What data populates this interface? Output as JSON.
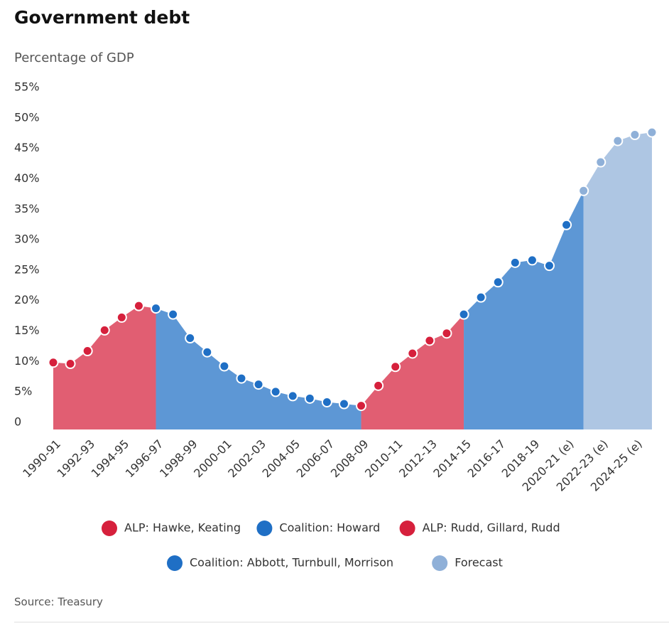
{
  "chart_data": {
    "type": "area",
    "title": "Government debt",
    "subtitle": "Percentage of GDP",
    "source": "Source: Treasury",
    "categories": [
      "1990-91",
      null,
      "1992-93",
      null,
      "1994-95",
      null,
      "1996-97",
      null,
      "1998-99",
      null,
      "2000-01",
      null,
      "2002-03",
      null,
      "2004-05",
      null,
      "2006-07",
      null,
      "2008-09",
      null,
      "2010-11",
      null,
      "2012-13",
      null,
      "2014-15",
      null,
      "2016-17",
      null,
      "2018-19",
      null,
      "2020-21 (e)",
      null,
      "2022-23 (e)",
      null,
      "2024-25 (e)",
      null
    ],
    "series": [
      {
        "name": "ALP: Hawke, Keating",
        "color": "#d6203c",
        "values": [
          11.0,
          10.8,
          12.9,
          16.3,
          18.4,
          20.3,
          null,
          null,
          null,
          null,
          null,
          null,
          null,
          null,
          null,
          null,
          null,
          null,
          null,
          null,
          null,
          null,
          null,
          null,
          null,
          null,
          null,
          null,
          null,
          null,
          null,
          null,
          null,
          null,
          null,
          null
        ]
      },
      {
        "name": "Coalition: Howard",
        "color": "#1f6fc5",
        "values": [
          null,
          null,
          null,
          null,
          null,
          null,
          19.9,
          18.9,
          15.0,
          12.7,
          10.4,
          8.4,
          7.4,
          6.2,
          5.5,
          5.1,
          4.5,
          4.2,
          null,
          null,
          null,
          null,
          null,
          null,
          null,
          null,
          null,
          null,
          null,
          null,
          null,
          null,
          null,
          null,
          null,
          null
        ]
      },
      {
        "name": "ALP: Rudd, Gillard, Rudd",
        "color": "#d6203c",
        "values": [
          null,
          null,
          null,
          null,
          null,
          null,
          null,
          null,
          null,
          null,
          null,
          null,
          null,
          null,
          null,
          null,
          null,
          null,
          3.9,
          7.2,
          10.3,
          12.5,
          14.6,
          15.8,
          null,
          null,
          null,
          null,
          null,
          null,
          null,
          null,
          null,
          null,
          null,
          null
        ]
      },
      {
        "name": "Coalition: Abbott, Turnbull, Morrison",
        "color": "#1f6fc5",
        "values": [
          null,
          null,
          null,
          null,
          null,
          null,
          null,
          null,
          null,
          null,
          null,
          null,
          null,
          null,
          null,
          null,
          null,
          null,
          null,
          null,
          null,
          null,
          null,
          null,
          18.9,
          21.7,
          24.2,
          27.4,
          27.8,
          26.9,
          33.6,
          null,
          null,
          null,
          null,
          null
        ]
      },
      {
        "name": "Forecast",
        "color": "#8fb0d8",
        "values": [
          null,
          null,
          null,
          null,
          null,
          null,
          null,
          null,
          null,
          null,
          null,
          null,
          null,
          null,
          null,
          null,
          null,
          null,
          null,
          null,
          null,
          null,
          null,
          null,
          null,
          null,
          null,
          null,
          null,
          null,
          null,
          39.2,
          43.9,
          47.4,
          48.4,
          48.8
        ]
      }
    ],
    "ylim": [
      0,
      55
    ],
    "yticks": [
      0,
      {
        "value": 5,
        "label": "5%"
      },
      {
        "value": 10,
        "label": "10%"
      },
      {
        "value": 15,
        "label": "15%"
      },
      {
        "value": 20,
        "label": "20%"
      },
      {
        "value": 25,
        "label": "25%"
      },
      {
        "value": 30,
        "label": "30%"
      },
      {
        "value": 35,
        "label": "35%"
      },
      {
        "value": 40,
        "label": "40%"
      },
      {
        "value": 45,
        "label": "45%"
      },
      {
        "value": 50,
        "label": "50%"
      },
      {
        "value": 55,
        "label": "55%"
      }
    ],
    "grid": false
  }
}
